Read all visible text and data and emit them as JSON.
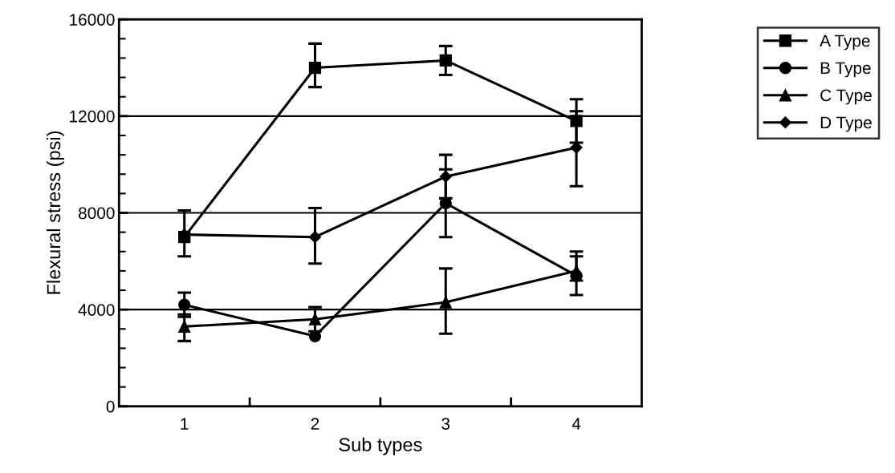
{
  "chart_data": {
    "type": "line",
    "xlabel": "Sub types",
    "ylabel": "Flexural stress (psi)",
    "x": [
      1,
      2,
      3,
      4
    ],
    "xlim": [
      0.5,
      4.5
    ],
    "xticks": [
      1,
      2,
      3,
      4,
      {
        "value": 1.5,
        "label": null
      },
      {
        "value": 2.5,
        "label": null
      },
      {
        "value": 3.5,
        "label": null
      }
    ],
    "ylim": [
      0,
      16000
    ],
    "yticks": [
      0,
      4000,
      8000,
      12000,
      16000,
      {
        "value": 800,
        "label": null
      },
      {
        "value": 1600,
        "label": null
      },
      {
        "value": 2400,
        "label": null
      },
      {
        "value": 3200,
        "label": null
      },
      {
        "value": 4800,
        "label": null
      },
      {
        "value": 5600,
        "label": null
      },
      {
        "value": 6400,
        "label": null
      },
      {
        "value": 7200,
        "label": null
      },
      {
        "value": 8800,
        "label": null
      },
      {
        "value": 9600,
        "label": null
      },
      {
        "value": 10400,
        "label": null
      },
      {
        "value": 11200,
        "label": null
      },
      {
        "value": 12800,
        "label": null
      },
      {
        "value": 13600,
        "label": null
      },
      {
        "value": 14400,
        "label": null
      },
      {
        "value": 15200,
        "label": null
      }
    ],
    "grid": "y",
    "legend": "top right",
    "line_style": "solid",
    "series": [
      {
        "name": "A Type",
        "color": "#000000",
        "marker": "square",
        "values": [
          7000,
          14000,
          14300,
          11800
        ],
        "errors": [
          [
            6200,
            8100
          ],
          [
            13200,
            15000
          ],
          [
            13700,
            14900
          ],
          [
            10900,
            12700
          ]
        ]
      },
      {
        "name": "B Type",
        "color": "#000000",
        "marker": "circle",
        "values": [
          4200,
          2900,
          8400,
          5400
        ],
        "errors": [
          [
            3700,
            4700
          ],
          null,
          [
            7000,
            9800
          ],
          [
            4600,
            6400
          ]
        ]
      },
      {
        "name": "C Type",
        "color": "#000000",
        "marker": "triangle",
        "values": [
          3300,
          3600,
          4300,
          5600
        ],
        "errors": [
          [
            2700,
            3800
          ],
          [
            3100,
            4100
          ],
          [
            3000,
            5700
          ],
          [
            5200,
            6200
          ]
        ]
      },
      {
        "name": "D Type",
        "color": "#000000",
        "marker": "diamond",
        "values": [
          7100,
          7000,
          9500,
          10700
        ],
        "errors": [
          null,
          [
            5900,
            8200
          ],
          [
            8600,
            10400
          ],
          [
            9100,
            12200
          ]
        ]
      }
    ]
  }
}
